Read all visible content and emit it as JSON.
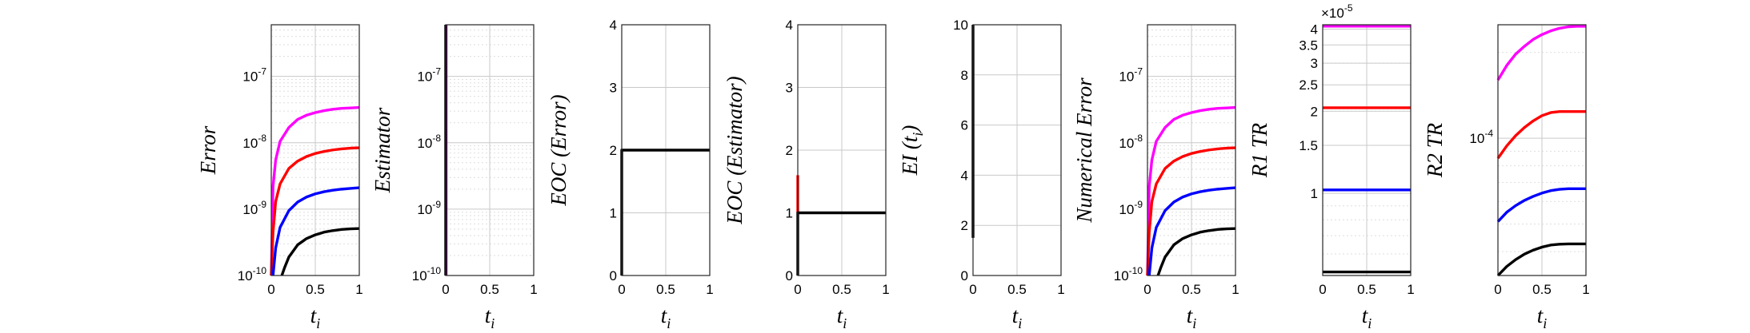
{
  "chart_data": [
    {
      "type": "line",
      "ylabel": "Error",
      "xlabel": "t",
      "xlabel_sub": "i",
      "yscale": "log",
      "ylim": [
        1e-10,
        6e-07
      ],
      "xlim": [
        0,
        1
      ],
      "xticks": [
        "0",
        "0.5",
        "1"
      ],
      "yticks": [
        1e-10,
        1e-09,
        1e-08,
        1e-07
      ],
      "ytick_labels": [
        {
          "base": "10",
          "exp": "-10"
        },
        {
          "base": "10",
          "exp": "-9"
        },
        {
          "base": "10",
          "exp": "-8"
        },
        {
          "base": "10",
          "exp": "-7"
        }
      ],
      "series": [
        {
          "color": "#ff00ff",
          "x": [
            0,
            0.02,
            0.05,
            0.1,
            0.2,
            0.3,
            0.4,
            0.5,
            0.6,
            0.7,
            0.8,
            0.9,
            1
          ],
          "y": [
            1e-10,
            2.2e-09,
            5.5e-09,
            1.05e-08,
            1.7e-08,
            2.25e-08,
            2.6e-08,
            2.85e-08,
            3.05e-08,
            3.2e-08,
            3.3e-08,
            3.35e-08,
            3.4e-08
          ]
        },
        {
          "color": "#ff0000",
          "x": [
            0,
            0.02,
            0.05,
            0.1,
            0.2,
            0.3,
            0.4,
            0.5,
            0.6,
            0.7,
            0.8,
            0.9,
            1
          ],
          "y": [
            1e-10,
            4.5e-10,
            1.3e-09,
            2.4e-09,
            4.1e-09,
            5.3e-09,
            6.2e-09,
            6.9e-09,
            7.4e-09,
            7.8e-09,
            8.1e-09,
            8.3e-09,
            8.4e-09
          ]
        },
        {
          "color": "#0000ff",
          "x": [
            0.02,
            0.05,
            0.1,
            0.2,
            0.3,
            0.4,
            0.5,
            0.6,
            0.7,
            0.8,
            0.9,
            1
          ],
          "y": [
            1e-10,
            2.6e-10,
            5.3e-10,
            9.5e-10,
            1.28e-09,
            1.52e-09,
            1.7e-09,
            1.83e-09,
            1.93e-09,
            2e-09,
            2.05e-09,
            2.1e-09
          ]
        },
        {
          "color": "#000000",
          "x": [
            0.12,
            0.15,
            0.2,
            0.3,
            0.4,
            0.5,
            0.6,
            0.7,
            0.8,
            0.9,
            1
          ],
          "y": [
            1e-10,
            1.3e-10,
            1.9e-10,
            2.9e-10,
            3.6e-10,
            4.1e-10,
            4.5e-10,
            4.75e-10,
            4.95e-10,
            5.05e-10,
            5.1e-10
          ]
        }
      ]
    },
    {
      "type": "line",
      "ylabel": "Estimator",
      "xlabel": "t",
      "xlabel_sub": "i",
      "yscale": "log",
      "ylim": [
        1e-10,
        6e-07
      ],
      "xlim": [
        0,
        1
      ],
      "xticks": [
        "0",
        "0.5",
        "1"
      ],
      "yticks": [
        1e-10,
        1e-09,
        1e-08,
        1e-07
      ],
      "ytick_labels": [
        {
          "base": "10",
          "exp": "-10"
        },
        {
          "base": "10",
          "exp": "-9"
        },
        {
          "base": "10",
          "exp": "-8"
        },
        {
          "base": "10",
          "exp": "-7"
        }
      ],
      "series": [
        {
          "color": "#ff00ff",
          "x": [
            0.005,
            0.005
          ],
          "y": [
            1e-10,
            6e-07
          ]
        },
        {
          "color": "#000000",
          "x": [
            0,
            0
          ],
          "y": [
            1e-10,
            6e-07
          ]
        }
      ]
    },
    {
      "type": "line",
      "ylabel": "EOC (Error)",
      "xlabel": "t",
      "xlabel_sub": "i",
      "yscale": "linear",
      "ylim": [
        0,
        4
      ],
      "xlim": [
        0,
        1
      ],
      "xticks": [
        "0",
        "0.5",
        "1"
      ],
      "yticks": [
        0,
        1,
        2,
        3,
        4
      ],
      "ytick_labels": [
        "0",
        "1",
        "2",
        "3",
        "4"
      ],
      "series": [
        {
          "color": "#000000",
          "x": [
            0,
            0,
            1
          ],
          "y": [
            0,
            2,
            2
          ]
        }
      ]
    },
    {
      "type": "line",
      "ylabel": "EOC (Estimator)",
      "xlabel": "t",
      "xlabel_sub": "i",
      "yscale": "linear",
      "ylim": [
        0,
        4
      ],
      "xlim": [
        0,
        1
      ],
      "xticks": [
        "0",
        "0.5",
        "1"
      ],
      "yticks": [
        0,
        1,
        2,
        3,
        4
      ],
      "ytick_labels": [
        "0",
        "1",
        "2",
        "3",
        "4"
      ],
      "series": [
        {
          "color": "#ff0000",
          "x": [
            0,
            0
          ],
          "y": [
            1,
            1.6
          ]
        },
        {
          "color": "#000000",
          "x": [
            0,
            0,
            1
          ],
          "y": [
            0,
            1,
            1
          ]
        }
      ]
    },
    {
      "type": "line",
      "ylabel": "EI (t",
      "ylabel_sub": "i",
      "ylabel_tail": ")",
      "xlabel": "t",
      "xlabel_sub": "i",
      "yscale": "linear",
      "ylim": [
        0,
        10
      ],
      "xlim": [
        0,
        1
      ],
      "xticks": [
        "0",
        "0.5",
        "1"
      ],
      "yticks": [
        0,
        2,
        4,
        6,
        8,
        10
      ],
      "ytick_labels": [
        "0",
        "2",
        "4",
        "6",
        "8",
        "10"
      ],
      "series": [
        {
          "color": "#000000",
          "x": [
            0,
            0
          ],
          "y": [
            1.5,
            10
          ]
        }
      ]
    },
    {
      "type": "line",
      "ylabel": "Numerical Error",
      "xlabel": "t",
      "xlabel_sub": "i",
      "yscale": "log",
      "ylim": [
        1e-10,
        6e-07
      ],
      "xlim": [
        0,
        1
      ],
      "xticks": [
        "0",
        "0.5",
        "1"
      ],
      "yticks": [
        1e-10,
        1e-09,
        1e-08,
        1e-07
      ],
      "ytick_labels": [
        {
          "base": "10",
          "exp": "-10"
        },
        {
          "base": "10",
          "exp": "-9"
        },
        {
          "base": "10",
          "exp": "-8"
        },
        {
          "base": "10",
          "exp": "-7"
        }
      ],
      "series": [
        {
          "color": "#ff00ff",
          "x": [
            0,
            0.02,
            0.05,
            0.1,
            0.2,
            0.3,
            0.4,
            0.5,
            0.6,
            0.7,
            0.8,
            0.9,
            1
          ],
          "y": [
            1e-10,
            2.2e-09,
            5.5e-09,
            1.05e-08,
            1.7e-08,
            2.25e-08,
            2.6e-08,
            2.85e-08,
            3.05e-08,
            3.2e-08,
            3.3e-08,
            3.35e-08,
            3.4e-08
          ]
        },
        {
          "color": "#ff0000",
          "x": [
            0,
            0.02,
            0.05,
            0.1,
            0.2,
            0.3,
            0.4,
            0.5,
            0.6,
            0.7,
            0.8,
            0.9,
            1
          ],
          "y": [
            1e-10,
            4.5e-10,
            1.3e-09,
            2.4e-09,
            4.1e-09,
            5.3e-09,
            6.2e-09,
            6.9e-09,
            7.4e-09,
            7.8e-09,
            8.1e-09,
            8.3e-09,
            8.4e-09
          ]
        },
        {
          "color": "#0000ff",
          "x": [
            0.02,
            0.05,
            0.1,
            0.2,
            0.3,
            0.4,
            0.5,
            0.6,
            0.7,
            0.8,
            0.9,
            1
          ],
          "y": [
            1e-10,
            2.6e-10,
            5.3e-10,
            9.5e-10,
            1.28e-09,
            1.52e-09,
            1.7e-09,
            1.83e-09,
            1.93e-09,
            2e-09,
            2.05e-09,
            2.1e-09
          ]
        },
        {
          "color": "#000000",
          "x": [
            0.12,
            0.15,
            0.2,
            0.3,
            0.4,
            0.5,
            0.6,
            0.7,
            0.8,
            0.9,
            1
          ],
          "y": [
            1e-10,
            1.3e-10,
            1.9e-10,
            2.9e-10,
            3.6e-10,
            4.1e-10,
            4.5e-10,
            4.75e-10,
            4.95e-10,
            5.05e-10,
            5.1e-10
          ]
        }
      ]
    },
    {
      "type": "line",
      "ylabel": "R1 TR",
      "xlabel": "t",
      "xlabel_sub": "i",
      "yscale": "log",
      "ylim": [
        5e-06,
        4.15e-05
      ],
      "xlim": [
        0,
        1
      ],
      "xticks": [
        "0",
        "0.5",
        "1"
      ],
      "yticks": [
        1e-05,
        1.5e-05,
        2e-05,
        2.5e-05,
        3e-05,
        3.5e-05,
        4e-05
      ],
      "ytick_labels": [
        "1",
        "1.5",
        "2",
        "2.5",
        "3",
        "3.5",
        "4"
      ],
      "exponent_label": {
        "base": "×10",
        "exp": "-5"
      },
      "series": [
        {
          "color": "#ff00ff",
          "x": [
            0,
            1
          ],
          "y": [
            4.1e-05,
            4.1e-05
          ]
        },
        {
          "color": "#ff0000",
          "x": [
            0,
            1
          ],
          "y": [
            2.06e-05,
            2.06e-05
          ]
        },
        {
          "color": "#0000ff",
          "x": [
            0,
            1
          ],
          "y": [
            1.03e-05,
            1.03e-05
          ]
        },
        {
          "color": "#000000",
          "x": [
            0,
            1
          ],
          "y": [
            5.15e-06,
            5.15e-06
          ]
        }
      ]
    },
    {
      "type": "line",
      "ylabel": "R2 TR",
      "xlabel": "t",
      "xlabel_sub": "i",
      "yscale": "log",
      "ylim": [
        3.3e-05,
        0.00025
      ],
      "xlim": [
        0,
        1
      ],
      "xticks": [
        "0",
        "0.5",
        "1"
      ],
      "yticks": [
        0.0001
      ],
      "ytick_labels": [
        {
          "base": "10",
          "exp": "-4"
        }
      ],
      "series": [
        {
          "color": "#ff00ff",
          "x": [
            0,
            0.1,
            0.2,
            0.3,
            0.4,
            0.5,
            0.6,
            0.7,
            0.8,
            0.9,
            1
          ],
          "y": [
            0.00016,
            0.00018,
            0.000197,
            0.00021,
            0.000222,
            0.000231,
            0.000238,
            0.000243,
            0.000246,
            0.000247,
            0.000247
          ]
        },
        {
          "color": "#ff0000",
          "x": [
            0,
            0.1,
            0.2,
            0.3,
            0.4,
            0.5,
            0.6,
            0.7,
            0.8,
            0.9,
            1
          ],
          "y": [
            8.5e-05,
            9.4e-05,
            0.000102,
            0.000109,
            0.000115,
            0.00012,
            0.000123,
            0.000124,
            0.000124,
            0.000124,
            0.000124
          ]
        },
        {
          "color": "#0000ff",
          "x": [
            0,
            0.1,
            0.2,
            0.3,
            0.4,
            0.5,
            0.6,
            0.7,
            0.8,
            0.9,
            1
          ],
          "y": [
            5.1e-05,
            5.5e-05,
            5.8e-05,
            6.05e-05,
            6.25e-05,
            6.42e-05,
            6.55e-05,
            6.62e-05,
            6.65e-05,
            6.65e-05,
            6.65e-05
          ]
        },
        {
          "color": "#000000",
          "x": [
            0,
            0.1,
            0.2,
            0.3,
            0.4,
            0.5,
            0.6,
            0.7,
            0.8,
            0.9,
            1
          ],
          "y": [
            3.3e-05,
            3.55e-05,
            3.75e-05,
            3.92e-05,
            4.05e-05,
            4.15e-05,
            4.22e-05,
            4.25e-05,
            4.26e-05,
            4.26e-05,
            4.26e-05
          ]
        }
      ]
    }
  ]
}
